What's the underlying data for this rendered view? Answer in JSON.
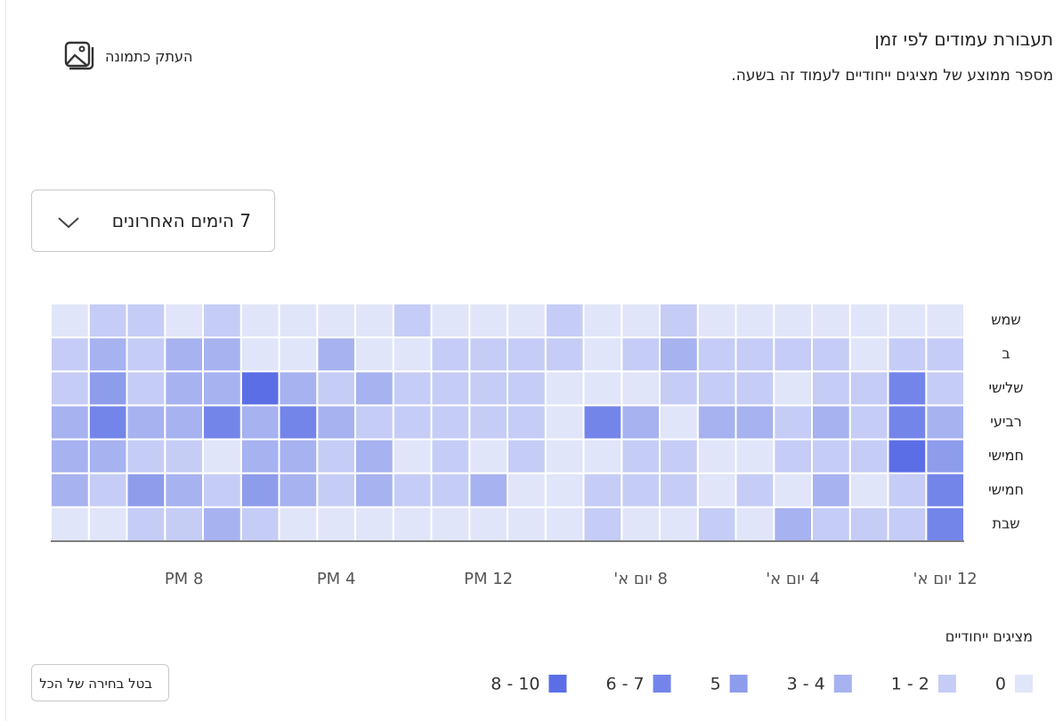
{
  "header": {
    "title": "תעבורת עמודים לפי זמן",
    "subtitle": "מספר ממוצע של מציגים ייחודיים לעמוד זה בשעה.",
    "copy_button": "העתק כתמונה"
  },
  "dropdown": {
    "label": "7 הימים האחרונים"
  },
  "clear_button": "בטל בחירה של הכל",
  "chart_data": {
    "type": "heatmap",
    "x": [
      "12 יום א'",
      null,
      null,
      null,
      "4 יום א'",
      null,
      null,
      null,
      "8 יום א'",
      null,
      null,
      null,
      "12 PM",
      null,
      null,
      null,
      "4 PM",
      null,
      null,
      null,
      "8 PM",
      null,
      null,
      null
    ],
    "rows": [
      {
        "name": "שמש",
        "values": [
          0,
          0,
          0,
          0,
          0,
          0,
          0,
          2,
          0,
          0,
          2,
          0,
          0,
          0,
          2,
          0,
          0,
          0,
          0,
          2,
          0,
          2,
          2,
          0
        ]
      },
      {
        "name": "ב",
        "values": [
          2,
          2,
          0,
          2,
          2,
          2,
          2,
          3,
          2,
          0,
          2,
          2,
          2,
          2,
          0,
          0,
          3,
          0,
          0,
          3,
          3,
          2,
          3,
          2
        ]
      },
      {
        "name": "שלישי",
        "values": [
          2,
          6,
          2,
          2,
          0,
          2,
          2,
          2,
          0,
          0,
          0,
          2,
          2,
          2,
          2,
          3,
          2,
          3,
          8,
          3,
          3,
          2,
          5,
          2
        ]
      },
      {
        "name": "רביעי",
        "values": [
          3,
          6,
          2,
          3,
          2,
          3,
          3,
          0,
          3,
          6,
          0,
          2,
          2,
          2,
          2,
          2,
          3,
          6,
          3,
          6,
          3,
          3,
          6,
          3
        ]
      },
      {
        "name": "חמישי",
        "values": [
          5,
          8,
          2,
          2,
          2,
          0,
          0,
          2,
          2,
          0,
          0,
          2,
          0,
          2,
          0,
          3,
          2,
          3,
          3,
          0,
          2,
          2,
          3,
          3
        ]
      },
      {
        "name": "חמישי",
        "values": [
          6,
          2,
          0,
          3,
          0,
          2,
          0,
          2,
          2,
          2,
          0,
          0,
          3,
          2,
          2,
          3,
          2,
          3,
          5,
          2,
          3,
          5,
          2,
          3
        ]
      },
      {
        "name": "שבת",
        "values": [
          6,
          2,
          2,
          2,
          3,
          0,
          2,
          0,
          0,
          2,
          0,
          0,
          0,
          0,
          0,
          0,
          0,
          0,
          2,
          3,
          2,
          2,
          0,
          0
        ]
      }
    ],
    "legend_title": "מציגים ייחודיים",
    "legend": [
      {
        "label": "0",
        "color": "#e1e5f9"
      },
      {
        "label": "1 - 2",
        "color": "#c5cdf6"
      },
      {
        "label": "3 - 4",
        "color": "#a7b2f0"
      },
      {
        "label": "5",
        "color": "#8e9cec"
      },
      {
        "label": "6 - 7",
        "color": "#7485ea"
      },
      {
        "label": "8 - 10",
        "color": "#5b6ee6"
      }
    ]
  }
}
